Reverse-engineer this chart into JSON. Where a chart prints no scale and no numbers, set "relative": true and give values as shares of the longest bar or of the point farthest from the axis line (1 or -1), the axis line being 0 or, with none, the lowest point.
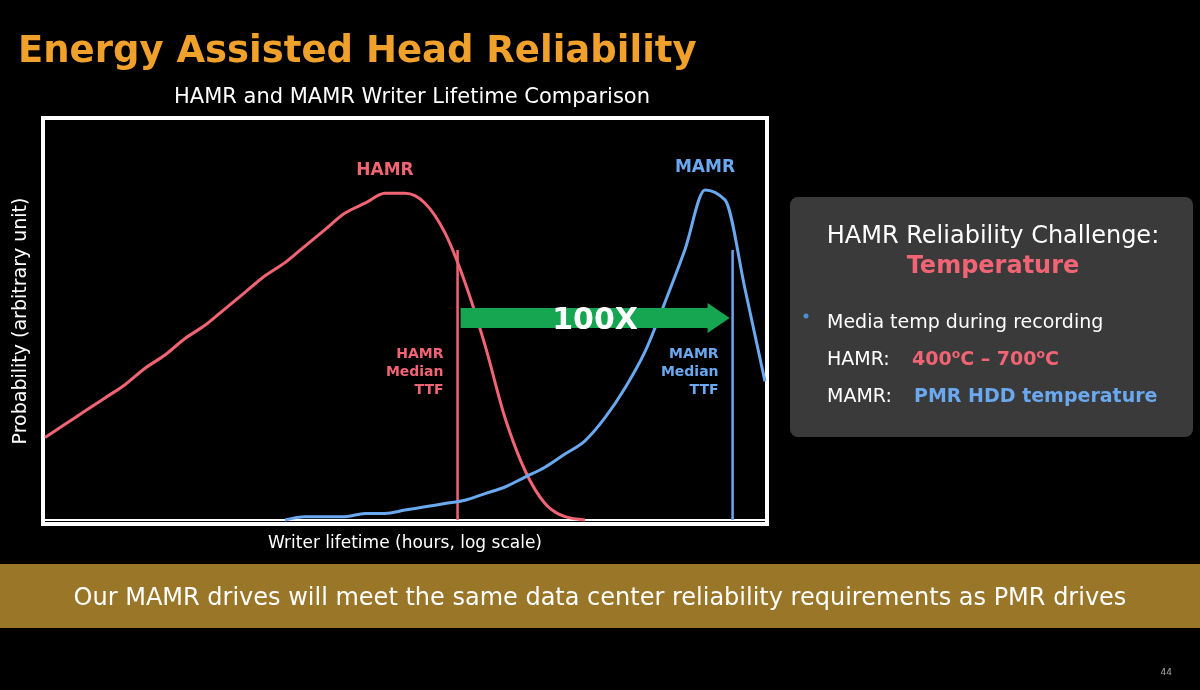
{
  "chart_data": [
    {
      "type": "line",
      "title": "Energy Assisted Head Reliability",
      "subtitle": "HAMR and MAMR Writer Lifetime Comparison",
      "xlabel": "Writer lifetime (hours, log scale)",
      "ylabel": "Probability (arbitrary unit)",
      "relative": true,
      "categories": [
        null,
        null,
        null,
        null,
        null,
        null,
        null,
        null,
        null,
        null,
        null,
        null,
        null,
        null,
        null,
        null,
        null,
        null,
        null,
        null,
        null,
        null,
        null,
        null,
        null,
        null,
        null,
        null,
        null,
        null,
        null,
        null,
        null,
        null,
        null,
        null,
        null
      ],
      "series": [
        {
          "name": "HAMR",
          "color": "#f06474",
          "values": [
            0.25,
            0.29,
            0.33,
            0.37,
            0.41,
            0.46,
            0.5,
            0.55,
            0.59,
            0.64,
            0.69,
            0.74,
            0.78,
            0.83,
            0.88,
            0.93,
            0.96,
            0.99,
            0.99,
            0.96,
            0.87,
            0.72,
            0.53,
            0.31,
            0.15,
            0.05,
            0.01,
            0,
            null,
            null,
            null,
            null,
            null,
            null,
            null,
            null,
            null
          ]
        },
        {
          "name": "MAMR",
          "color": "#6aa8f0",
          "values": [
            null,
            null,
            null,
            null,
            null,
            null,
            null,
            null,
            null,
            null,
            null,
            null,
            0,
            0.01,
            0.01,
            0.01,
            0.02,
            0.02,
            0.03,
            0.04,
            0.05,
            0.06,
            0.08,
            0.1,
            0.13,
            0.16,
            0.2,
            0.24,
            0.31,
            0.4,
            0.51,
            0.66,
            0.82,
            1,
            0.97,
            0.7,
            0.42
          ]
        }
      ],
      "annotations": [
        "HAMR\nMedian\nTTF",
        "MAMR\nMedian\nTTF",
        "100X",
        "Our MAMR drives will meet the same data center reliability requirements as PMR drives",
        "44"
      ]
    },
    {
      "type": "other",
      "title": "HAMR Reliability Challenge:",
      "subtitle": "Temperature",
      "annotations": [
        "Media temp during recording",
        "HAMR:",
        "400$^{o}$C – 700$^{o}$C",
        "MAMR:",
        "PMR HDD temperature"
      ]
    }
  ]
}
